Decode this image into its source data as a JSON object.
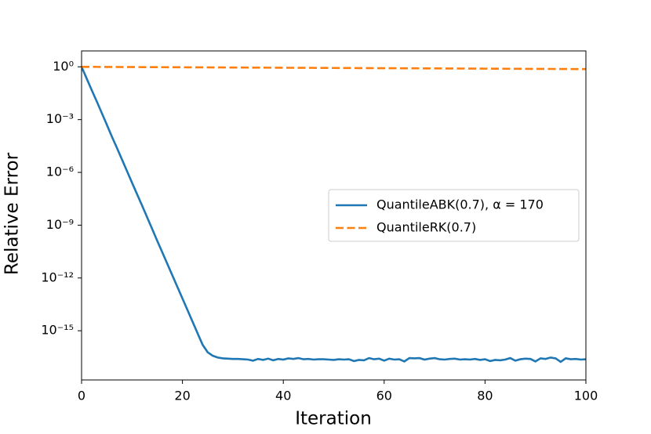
{
  "chart_data": {
    "type": "line",
    "yscale": "log",
    "grid": false,
    "legend": "center right",
    "xlabel": "Iteration",
    "ylabel": "Relative Error",
    "x": [
      0,
      1,
      2,
      3,
      4,
      5,
      6,
      7,
      8,
      9,
      10,
      11,
      12,
      13,
      14,
      15,
      16,
      17,
      18,
      19,
      20,
      21,
      22,
      23,
      24,
      25,
      26,
      27,
      28,
      29,
      30,
      31,
      32,
      33,
      34,
      35,
      36,
      37,
      38,
      39,
      40,
      41,
      42,
      43,
      44,
      45,
      46,
      47,
      48,
      49,
      50,
      51,
      52,
      53,
      54,
      55,
      56,
      57,
      58,
      59,
      60,
      61,
      62,
      63,
      64,
      65,
      66,
      67,
      68,
      69,
      70,
      71,
      72,
      73,
      74,
      75,
      76,
      77,
      78,
      79,
      80,
      81,
      82,
      83,
      84,
      85,
      86,
      87,
      88,
      89,
      90,
      91,
      92,
      93,
      94,
      95,
      96,
      97,
      98,
      99,
      100
    ],
    "series": [
      {
        "name": "QuantileABK(0.7), α = 170",
        "color": "#1f77b4",
        "dashed": false,
        "values": [
          1,
          0.22,
          0.048,
          0.011,
          0.0024,
          0.00052,
          0.00011,
          2.5e-05,
          5.5e-06,
          1.2e-06,
          2.6e-07,
          5.8e-08,
          1.3e-08,
          2.8e-09,
          6.1e-10,
          1.3e-10,
          2.9e-11,
          6.4e-12,
          1.4e-12,
          3.1e-13,
          6.8e-14,
          1.5e-14,
          3.3e-15,
          7.2e-16,
          1.6e-16,
          6e-17,
          3.8e-17,
          3e-17,
          2.7e-17,
          2.6e-17,
          2.5e-17,
          2.5e-17,
          2.4e-17,
          2.3e-17,
          2e-17,
          2.5e-17,
          2.2e-17,
          2.6e-17,
          2.1e-17,
          2.5e-17,
          2.3e-17,
          2.7e-17,
          2.5e-17,
          2.8e-17,
          2.4e-17,
          2.5e-17,
          2.3e-17,
          2.4e-17,
          2.4e-17,
          2.3e-17,
          2.2e-17,
          2.4e-17,
          2.3e-17,
          2.4e-17,
          1.9e-17,
          2.2e-17,
          2.1e-17,
          2.8e-17,
          2.4e-17,
          2.6e-17,
          2e-17,
          2.6e-17,
          2.3e-17,
          2.4e-17,
          1.8e-17,
          2.8e-17,
          2.7e-17,
          2.8e-17,
          2.3e-17,
          2.6e-17,
          2.8e-17,
          2.4e-17,
          2.3e-17,
          2.5e-17,
          2.6e-17,
          2.3e-17,
          2.4e-17,
          2.3e-17,
          2.5e-17,
          2.2e-17,
          2.4e-17,
          1.9e-17,
          2.2e-17,
          2.1e-17,
          2.3e-17,
          2.8e-17,
          2e-17,
          2.4e-17,
          2.6e-17,
          2.5e-17,
          1.8e-17,
          2.7e-17,
          2.5e-17,
          3e-17,
          2.7e-17,
          1.7e-17,
          2.7e-17,
          2.4e-17,
          2.5e-17,
          2.3e-17,
          2.4e-17
        ]
      },
      {
        "name": "QuantileRK(0.7)",
        "color": "#ff7f0e",
        "dashed": true,
        "values": [
          1,
          0.997,
          0.994,
          0.991,
          0.988,
          0.985,
          0.982,
          0.979,
          0.976,
          0.973,
          0.97,
          0.967,
          0.964,
          0.962,
          0.959,
          0.956,
          0.953,
          0.95,
          0.948,
          0.945,
          0.942,
          0.939,
          0.936,
          0.934,
          0.931,
          0.928,
          0.925,
          0.922,
          0.92,
          0.917,
          0.914,
          0.911,
          0.909,
          0.906,
          0.903,
          0.901,
          0.898,
          0.895,
          0.893,
          0.89,
          0.887,
          0.884,
          0.882,
          0.879,
          0.876,
          0.874,
          0.871,
          0.868,
          0.866,
          0.863,
          0.86,
          0.857,
          0.855,
          0.852,
          0.85,
          0.847,
          0.845,
          0.842,
          0.84,
          0.837,
          0.835,
          0.832,
          0.83,
          0.827,
          0.825,
          0.822,
          0.82,
          0.817,
          0.815,
          0.812,
          0.81,
          0.808,
          0.805,
          0.803,
          0.8,
          0.798,
          0.796,
          0.793,
          0.791,
          0.788,
          0.786,
          0.784,
          0.781,
          0.779,
          0.777,
          0.774,
          0.772,
          0.77,
          0.767,
          0.765,
          0.763,
          0.761,
          0.758,
          0.756,
          0.754,
          0.751,
          0.749,
          0.747,
          0.745,
          0.742,
          0.74
        ]
      }
    ],
    "xlim": [
      0,
      100
    ],
    "xticks": [
      0,
      20,
      40,
      60,
      80,
      100
    ],
    "ylim": [
      1.6e-18,
      8
    ],
    "yticks": [
      {
        "value": 1,
        "label": "10⁰"
      },
      {
        "value": 0.001,
        "label": "10⁻³"
      },
      {
        "value": 1e-06,
        "label": "10⁻⁶"
      },
      {
        "value": 1e-09,
        "label": "10⁻⁹"
      },
      {
        "value": 1e-12,
        "label": "10⁻¹²"
      },
      {
        "value": 1e-15,
        "label": "10⁻¹⁵"
      }
    ]
  }
}
